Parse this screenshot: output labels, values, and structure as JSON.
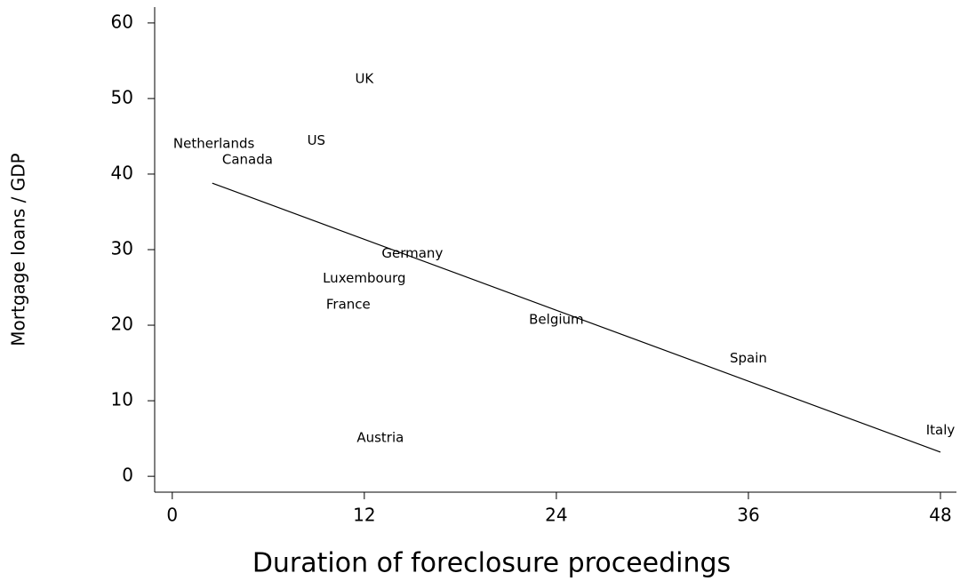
{
  "chart_data": {
    "type": "scatter",
    "xlabel": "Duration of foreclosure proceedings",
    "ylabel": "Mortgage loans / GDP",
    "labels": [
      "UK",
      "Netherlands",
      "US",
      "Canada",
      "Germany",
      "Luxembourg",
      "France",
      "Belgium",
      "Spain",
      "Austria",
      "Italy"
    ],
    "x": [
      12,
      2.6,
      9,
      4.7,
      15,
      12,
      11,
      24,
      36,
      13,
      48
    ],
    "y": [
      52.6,
      44.0,
      44.4,
      41.9,
      29.5,
      26.2,
      22.7,
      20.7,
      15.6,
      5.1,
      6.1
    ],
    "fit": {
      "x": [
        2.5,
        48
      ],
      "y": [
        38.8,
        3.2
      ]
    },
    "color": "#000000",
    "xlim": [
      -1.1,
      49
    ],
    "xticks": [
      0,
      12,
      24,
      36,
      48
    ],
    "ylim": [
      -2.1,
      62.1
    ],
    "yticks": [
      0,
      10,
      20,
      30,
      40,
      50,
      60
    ]
  }
}
